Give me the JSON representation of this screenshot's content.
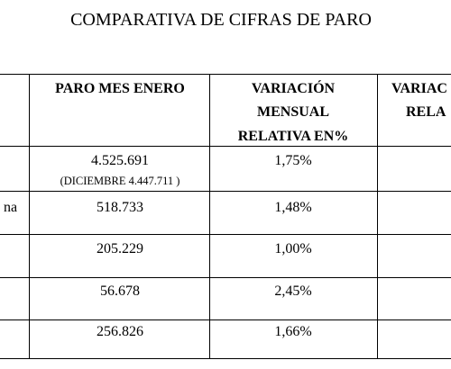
{
  "title": "COMPARATIVA DE CIFRAS DE PARO",
  "table": {
    "header": {
      "paro": "PARO MES  ENERO",
      "variacion_mensual": [
        "VARIACIÓN",
        "MENSUAL",
        "RELATIVA EN%"
      ],
      "variacion_anual": [
        "VARIAC",
        "RELA"
      ]
    },
    "rows": [
      {
        "paro": "4.525.691",
        "note": "(DICIEMBRE 4.447.711 )",
        "variacion": "1,75%"
      },
      {
        "label": "na",
        "paro": "518.733",
        "variacion": "1,48%"
      },
      {
        "paro": "205.229",
        "variacion": "1,00%"
      },
      {
        "paro": "56.678",
        "variacion": "2,45%"
      },
      {
        "paro": "256.826",
        "variacion": "1,66%"
      }
    ]
  }
}
